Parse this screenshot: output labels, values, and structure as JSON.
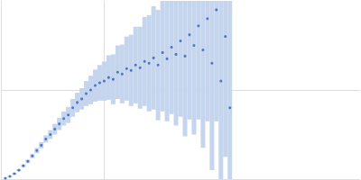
{
  "chart_data": {
    "type": "scatter",
    "x": [
      0.05,
      0.1,
      0.15,
      0.2,
      0.25,
      0.3,
      0.35,
      0.4,
      0.45,
      0.5,
      0.55,
      0.6,
      0.65,
      0.7,
      0.75,
      0.8,
      0.85,
      0.9,
      0.95,
      1.0,
      1.05,
      1.1,
      1.15,
      1.2,
      1.25,
      1.3,
      1.35,
      1.4,
      1.45,
      1.5,
      1.55,
      1.6,
      1.65,
      1.7,
      1.75,
      1.8,
      1.85,
      1.9,
      1.95,
      2.0,
      2.05,
      2.1,
      2.15,
      2.2,
      2.25,
      2.3,
      2.35,
      2.4,
      2.45,
      2.5,
      2.55
    ],
    "values": [
      0.01,
      0.03,
      0.06,
      0.1,
      0.15,
      0.2,
      0.26,
      0.32,
      0.38,
      0.45,
      0.5,
      0.56,
      0.62,
      0.68,
      0.72,
      0.8,
      0.86,
      0.9,
      0.96,
      1.0,
      1.05,
      1.08,
      1.1,
      1.14,
      1.12,
      1.2,
      1.18,
      1.24,
      1.22,
      1.28,
      1.25,
      1.32,
      1.3,
      1.36,
      1.28,
      1.42,
      1.35,
      1.48,
      1.4,
      1.55,
      1.38,
      1.62,
      1.5,
      1.72,
      1.45,
      1.8,
      1.3,
      1.9,
      1.1,
      1.6,
      0.8
    ],
    "errors": [
      0.005,
      0.008,
      0.01,
      0.012,
      0.015,
      0.02,
      0.025,
      0.03,
      0.035,
      0.04,
      0.05,
      0.06,
      0.07,
      0.08,
      0.09,
      0.1,
      0.11,
      0.12,
      0.14,
      0.16,
      0.18,
      0.2,
      0.22,
      0.25,
      0.28,
      0.3,
      0.33,
      0.36,
      0.4,
      0.43,
      0.46,
      0.5,
      0.54,
      0.58,
      0.62,
      0.66,
      0.7,
      0.75,
      0.8,
      0.85,
      0.9,
      0.95,
      1.0,
      1.05,
      1.1,
      1.15,
      1.2,
      1.25,
      1.3,
      1.35,
      1.4
    ],
    "color": "#2d5fb8",
    "error_color": "#c5d5ee",
    "xlim": [
      0,
      4
    ],
    "xticks": [
      1.15
    ],
    "ylim": [
      0,
      2
    ],
    "yticks": [
      1
    ],
    "grid": true,
    "tick_labels": false
  }
}
